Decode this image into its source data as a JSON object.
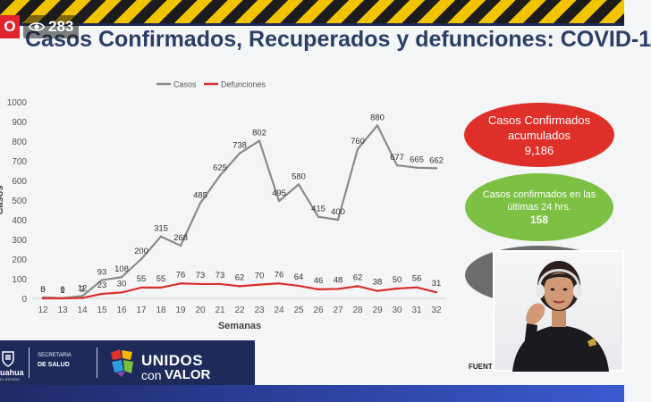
{
  "stream": {
    "live_label": "O",
    "viewer_count": "283",
    "eye_icon": "eye-icon"
  },
  "slide": {
    "title": "Casos Confirmados, Recuperados y defunciones: COVID-1",
    "bubbles": {
      "confirmed_title": "Casos Confirmados acumulados",
      "confirmed_value": "9,186",
      "last24_title": "Casos confirmados en las últimas 24 hrs.",
      "last24_value": "158"
    },
    "source_label": "FUENT",
    "colors": {
      "cases_line": "#8a8a8a",
      "deaths_line": "#d9312b",
      "title": "#2a3e66",
      "bubble_red": "#de2f28",
      "bubble_green": "#7cc143",
      "bubble_gray": "#6c6c6c",
      "footer": "#1d2a5a"
    }
  },
  "footer": {
    "state_partial": "uahua",
    "state_sub": "EL ESTADO",
    "secretaria": "SECRETARÍA",
    "salud": "DE SALUD",
    "logo_unidos": "UNIDOS",
    "logo_con": "con",
    "logo_valor": "VALOR"
  },
  "chart_data": {
    "type": "line",
    "title": "",
    "xlabel": "Semanas",
    "ylabel": "Casos",
    "ylim": [
      0,
      1000
    ],
    "yticks": [
      0,
      100,
      200,
      300,
      400,
      500,
      600,
      700,
      800,
      900,
      1000
    ],
    "grid": false,
    "legend_position": "top-center",
    "categories": [
      "12",
      "13",
      "14",
      "15",
      "16",
      "17",
      "18",
      "19",
      "20",
      "21",
      "22",
      "23",
      "24",
      "25",
      "26",
      "27",
      "28",
      "29",
      "30",
      "31",
      "32"
    ],
    "series": [
      {
        "name": "Casos",
        "color": "#8a8a8a",
        "values": [
          5,
          1,
          12,
          93,
          108,
          200,
          315,
          268,
          485,
          625,
          738,
          802,
          495,
          580,
          415,
          400,
          760,
          880,
          677,
          665,
          662
        ]
      },
      {
        "name": "Defunciones",
        "color": "#d9312b",
        "values": [
          0,
          0,
          2,
          23,
          30,
          55,
          55,
          76,
          73,
          73,
          62,
          70,
          76,
          64,
          46,
          48,
          62,
          38,
          50,
          56,
          31
        ]
      }
    ]
  }
}
